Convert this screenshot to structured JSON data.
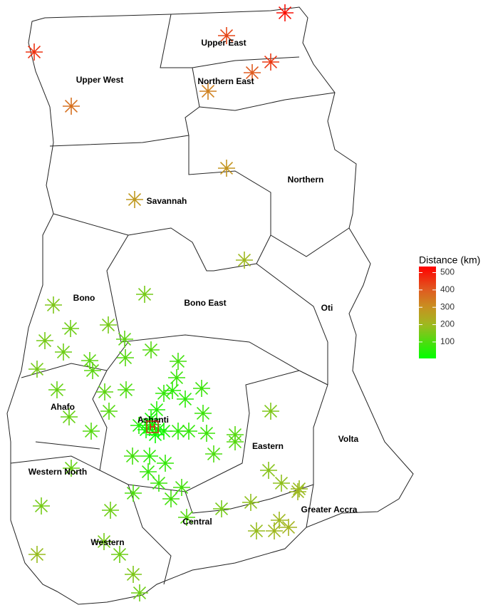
{
  "regions": [
    "Upper West",
    "Upper East",
    "Northern East",
    "Northern",
    "Savannah",
    "Bono East",
    "Oti",
    "Bono",
    "Ahafo",
    "Ashanti",
    "Eastern",
    "Volta",
    "Western North",
    "Greater Accra",
    "Central",
    "Western"
  ],
  "hospital_label": "H",
  "legend": {
    "title": "Distance (km)",
    "lim": [
      5,
      535
    ],
    "ticks": [
      100,
      200,
      300,
      400,
      500
    ]
  },
  "points": [
    510,
    430,
    460,
    450,
    400,
    330,
    360,
    290,
    280,
    200,
    150,
    160,
    140,
    150,
    150,
    140,
    120,
    110,
    150,
    120,
    120,
    110,
    90,
    130,
    120,
    100,
    80,
    60,
    80,
    70,
    60,
    50,
    80,
    130,
    110,
    110,
    50,
    30,
    40,
    60,
    70,
    80,
    110,
    110,
    160,
    100,
    90,
    60,
    70,
    70,
    80,
    90,
    100,
    90,
    130,
    170,
    180,
    190,
    200,
    180,
    150,
    110,
    150,
    140,
    200,
    210,
    200,
    190,
    150,
    140,
    190,
    160,
    140,
    20,
    25,
    15,
    30,
    20
  ]
}
